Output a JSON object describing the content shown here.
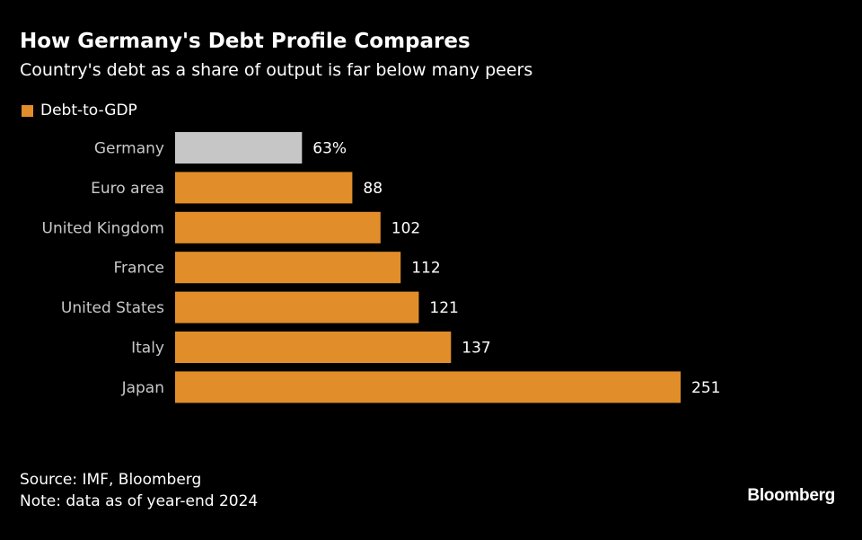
{
  "header": {
    "title": "How Germany's Debt Profile Compares",
    "subtitle": "Country's debt as a share of output is far below many peers"
  },
  "legend": {
    "label": "Debt-to-GDP",
    "color": "#e18e2a"
  },
  "chart_data": {
    "type": "bar",
    "orientation": "horizontal",
    "title": "How Germany's Debt Profile Compares",
    "subtitle": "Country's debt as a share of output is far below many peers",
    "xlabel": "",
    "ylabel": "",
    "categories": [
      "Germany",
      "Euro area",
      "United Kingdom",
      "France",
      "United States",
      "Italy",
      "Japan"
    ],
    "series": [
      {
        "name": "Debt-to-GDP",
        "values": [
          63,
          88,
          102,
          112,
          121,
          137,
          251
        ]
      }
    ],
    "value_labels": [
      "63%",
      "88",
      "102",
      "112",
      "121",
      "137",
      "251"
    ],
    "highlight_category": "Germany",
    "colors": {
      "bar": "#e18e2a",
      "highlight": "#c6c6c6",
      "text": "#ffffff"
    },
    "xlim": [
      0,
      251
    ],
    "grid": false,
    "legend_position": "top-left"
  },
  "footer": {
    "source": "Source: IMF, Bloomberg",
    "note": "Note: data as of year-end 2024"
  },
  "brand": "Bloomberg"
}
